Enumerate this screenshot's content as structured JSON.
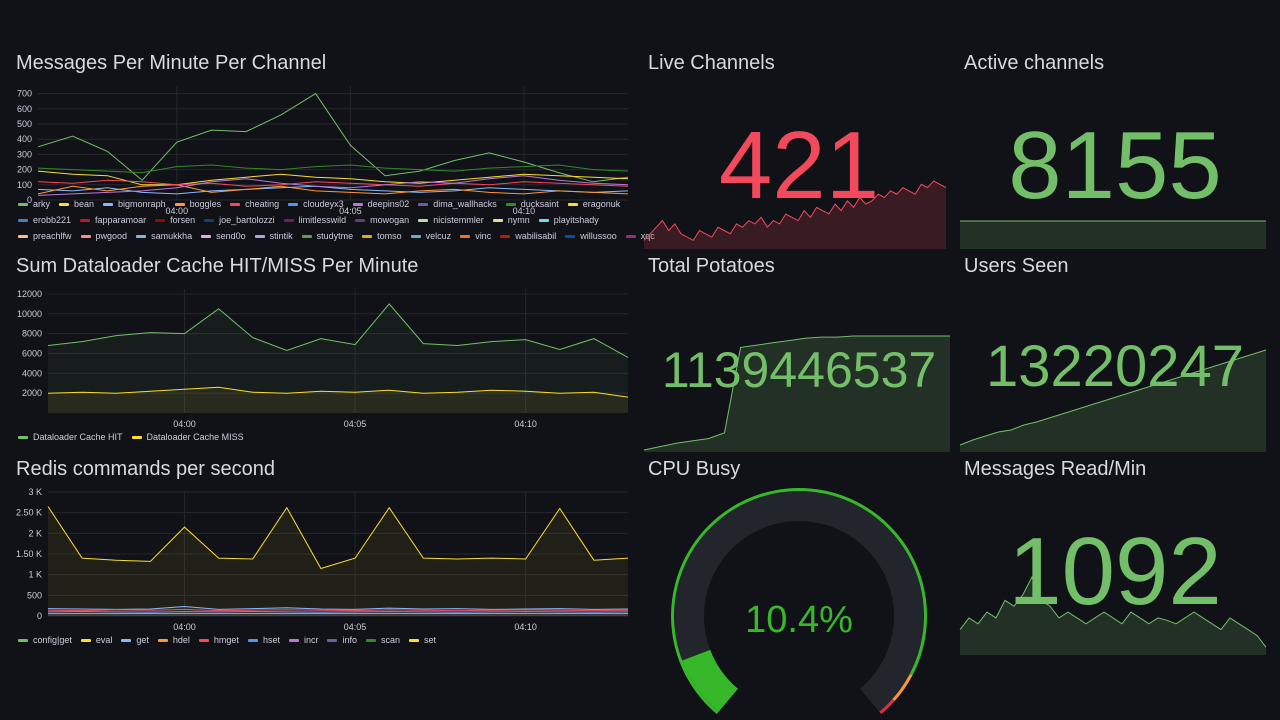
{
  "colors": {
    "green": "#73bf69",
    "yellow": "#fade2a",
    "red": "#f2495c",
    "grid": "#25272d",
    "axis_text": "#ccccdc"
  },
  "panels": {
    "messages_per_minute": {
      "title": "Messages Per Minute Per Channel",
      "y_ticks": [
        "700",
        "600",
        "500",
        "400",
        "300",
        "200",
        "100",
        "0"
      ],
      "x_ticks": [
        "04:00",
        "04:05",
        "04:10"
      ],
      "legend_rows": [
        [
          {
            "label": "arky",
            "color": "#73bf69"
          },
          {
            "label": "bean",
            "color": "#fade2a"
          },
          {
            "label": "bigmonraph",
            "color": "#8ab8ff"
          },
          {
            "label": "boggles",
            "color": "#ff9830"
          },
          {
            "label": "cheating",
            "color": "#f2495c"
          },
          {
            "label": "cloudeyx3",
            "color": "#5794f2"
          },
          {
            "label": "deepins02",
            "color": "#b877d9"
          },
          {
            "label": "dima_wallhacks",
            "color": "#705da0"
          },
          {
            "label": "ducksaint",
            "color": "#37872d"
          },
          {
            "label": "eragonuk",
            "color": "#fade2a"
          }
        ],
        [
          {
            "label": "erobb221",
            "color": "#447ebc"
          },
          {
            "label": "fapparamoar",
            "color": "#c4162a"
          },
          {
            "label": "forsen",
            "color": "#890f02"
          },
          {
            "label": "joe_bartolozzi",
            "color": "#0a437c"
          },
          {
            "label": "limitlesswild",
            "color": "#6d1f62"
          },
          {
            "label": "mowogan",
            "color": "#584477"
          },
          {
            "label": "nicistemmler",
            "color": "#b7dbab"
          },
          {
            "label": "nymn",
            "color": "#f4d598"
          },
          {
            "label": "playitshady",
            "color": "#70dbed"
          }
        ],
        [
          {
            "label": "preachlfw",
            "color": "#f9ba8f"
          },
          {
            "label": "pwgood",
            "color": "#f29191"
          },
          {
            "label": "samukkha",
            "color": "#82b5d8"
          },
          {
            "label": "send0o",
            "color": "#e5a8e2"
          },
          {
            "label": "stintik",
            "color": "#aea2e0"
          },
          {
            "label": "studytme",
            "color": "#629e51"
          },
          {
            "label": "tomso",
            "color": "#e5ac0e"
          },
          {
            "label": "velcuz",
            "color": "#64b0c8"
          },
          {
            "label": "vinc",
            "color": "#e0752d"
          },
          {
            "label": "wabilisabil",
            "color": "#bf1b00"
          },
          {
            "label": "willussoo",
            "color": "#0a50a1"
          },
          {
            "label": "xqc",
            "color": "#962d82"
          }
        ]
      ],
      "chart_data": {
        "type": "line",
        "x": [
          "03:56",
          "03:57",
          "03:58",
          "03:59",
          "04:00",
          "04:01",
          "04:02",
          "04:03",
          "04:04",
          "04:05",
          "04:06",
          "04:07",
          "04:08",
          "04:09",
          "04:10",
          "04:11",
          "04:12",
          "04:13"
        ],
        "ylim": [
          0,
          750
        ],
        "series": [
          {
            "name": "arky",
            "color": "#73bf69",
            "values": [
              350,
              420,
              320,
              130,
              380,
              460,
              450,
              560,
              700,
              360,
              160,
              190,
              260,
              310,
              250,
              180,
              120,
              150
            ]
          },
          {
            "name": "bean",
            "color": "#fade2a",
            "values": [
              190,
              170,
              160,
              100,
              100,
              130,
              150,
              170,
              150,
              140,
              120,
              110,
              130,
              150,
              170,
              160,
              150,
              140
            ]
          },
          {
            "name": "bigmonraph",
            "color": "#8ab8ff",
            "values": [
              70,
              60,
              80,
              50,
              40,
              60,
              70,
              80,
              90,
              70,
              60,
              50,
              60,
              80,
              70,
              60,
              50,
              60
            ]
          },
          {
            "name": "boggles",
            "color": "#ff9830",
            "values": [
              40,
              90,
              60,
              90,
              100,
              50,
              70,
              90,
              60,
              50,
              40,
              60,
              70,
              50,
              40,
              60,
              50,
              40
            ]
          },
          {
            "name": "cheating",
            "color": "#f2495c",
            "values": [
              120,
              110,
              130,
              120,
              100,
              110,
              90,
              100,
              120,
              110,
              100,
              90,
              110,
              100,
              120,
              110,
              100,
              90
            ]
          },
          {
            "name": "deepins02",
            "color": "#b877d9",
            "values": [
              30,
              40,
              50,
              60,
              80,
              120,
              140,
              110,
              90,
              80,
              100,
              120,
              110,
              140,
              160,
              130,
              110,
              100
            ]
          },
          {
            "name": "ducksaint",
            "color": "#37872d",
            "values": [
              210,
              200,
              190,
              180,
              220,
              230,
              210,
              200,
              220,
              230,
              210,
              200,
              190,
              210,
              220,
              230,
              200,
              190
            ]
          }
        ]
      }
    },
    "cache_hit_miss": {
      "title": "Sum Dataloader Cache HIT/MISS Per Minute",
      "y_ticks": [
        "12000",
        "10000",
        "8000",
        "6000",
        "4000",
        "2000"
      ],
      "x_ticks": [
        "04:00",
        "04:05",
        "04:10"
      ],
      "legend": [
        {
          "label": "Dataloader Cache HIT",
          "color": "#73bf69"
        },
        {
          "label": "Dataloader Cache MISS",
          "color": "#fade2a"
        }
      ],
      "chart_data": {
        "type": "area",
        "x": [
          "03:56",
          "03:57",
          "03:58",
          "03:59",
          "04:00",
          "04:01",
          "04:02",
          "04:03",
          "04:04",
          "04:05",
          "04:06",
          "04:07",
          "04:08",
          "04:09",
          "04:10",
          "04:11",
          "04:12",
          "04:13"
        ],
        "ylim": [
          0,
          12500
        ],
        "series": [
          {
            "name": "Dataloader Cache HIT",
            "color": "#73bf69",
            "values": [
              6800,
              7200,
              7800,
              8100,
              8000,
              10500,
              7600,
              6300,
              7500,
              6900,
              11000,
              7000,
              6800,
              7200,
              7400,
              6400,
              7500,
              5600
            ]
          },
          {
            "name": "Dataloader Cache MISS",
            "color": "#fade2a",
            "values": [
              2000,
              2100,
              2000,
              2200,
              2400,
              2600,
              2100,
              2000,
              2200,
              2100,
              2300,
              2000,
              2100,
              2300,
              2200,
              2000,
              2100,
              1600
            ]
          }
        ]
      }
    },
    "redis_commands": {
      "title": "Redis commands per second",
      "y_ticks": [
        "3 K",
        "2.50 K",
        "2 K",
        "1.50 K",
        "1 K",
        "500",
        "0"
      ],
      "x_ticks": [
        "04:00",
        "04:05",
        "04:10"
      ],
      "legend": [
        {
          "label": "config|get",
          "color": "#73bf69"
        },
        {
          "label": "eval",
          "color": "#fade2a"
        },
        {
          "label": "get",
          "color": "#8ab8ff"
        },
        {
          "label": "hdel",
          "color": "#ff9830"
        },
        {
          "label": "hmget",
          "color": "#f2495c"
        },
        {
          "label": "hset",
          "color": "#5794f2"
        },
        {
          "label": "incr",
          "color": "#b877d9"
        },
        {
          "label": "info",
          "color": "#705da0"
        },
        {
          "label": "scan",
          "color": "#37872d"
        },
        {
          "label": "set",
          "color": "#fade2a"
        }
      ],
      "chart_data": {
        "type": "area",
        "x": [
          "03:56",
          "03:57",
          "03:58",
          "03:59",
          "04:00",
          "04:01",
          "04:02",
          "04:03",
          "04:04",
          "04:05",
          "04:06",
          "04:07",
          "04:08",
          "04:09",
          "04:10",
          "04:11",
          "04:12",
          "04:13"
        ],
        "ylim": [
          0,
          3000
        ],
        "series": [
          {
            "name": "eval",
            "color": "#fade2a",
            "values": [
              2650,
              1400,
              1350,
              1320,
              2150,
              1400,
              1380,
              2620,
              1150,
              1400,
              2620,
              1400,
              1380,
              1400,
              1380,
              2600,
              1350,
              1400
            ]
          },
          {
            "name": "get",
            "color": "#8ab8ff",
            "values": [
              180,
              170,
              160,
              170,
              230,
              160,
              180,
              200,
              170,
              160,
              190,
              170,
              180,
              160,
              170,
              180,
              160,
              170
            ]
          },
          {
            "name": "hmget",
            "color": "#f2495c",
            "values": [
              140,
              130,
              150,
              140,
              160,
              130,
              140,
              150,
              140,
              130,
              150,
              140,
              130,
              140,
              150,
              140,
              130,
              140
            ]
          },
          {
            "name": "hset",
            "color": "#5794f2",
            "values": [
              100,
              110,
              100,
              90,
              110,
              100,
              110,
              100,
              90,
              100,
              110,
              100,
              90,
              100,
              110,
              100,
              90,
              100
            ]
          },
          {
            "name": "config|get",
            "color": "#73bf69",
            "values": [
              60,
              60,
              60,
              60,
              60,
              60,
              60,
              60,
              60,
              60,
              60,
              60,
              60,
              60,
              60,
              60,
              60,
              60
            ]
          }
        ]
      }
    },
    "live_channels": {
      "title": "Live Channels",
      "value": "421",
      "color": "#f2495c",
      "sparkline": [
        10,
        20,
        30,
        40,
        25,
        35,
        20,
        15,
        10,
        25,
        20,
        15,
        30,
        25,
        20,
        35,
        30,
        40,
        35,
        45,
        30,
        40,
        35,
        50,
        45,
        40,
        55,
        45,
        60,
        55,
        50,
        65,
        55,
        70,
        60,
        75,
        65,
        70,
        80,
        75,
        85,
        80,
        90,
        85,
        80,
        95,
        90,
        100,
        95,
        90
      ]
    },
    "active_channels": {
      "title": "Active channels",
      "value": "8155",
      "color": "#73bf69",
      "sparkline": [
        100,
        100,
        100,
        100,
        100,
        100,
        100,
        100,
        100,
        100
      ]
    },
    "total_potatoes": {
      "title": "Total Potatoes",
      "value": "1139446537",
      "color": "#73bf69",
      "sparkline": [
        0,
        3,
        6,
        8,
        10,
        15,
        90,
        92,
        94,
        96,
        98,
        99,
        99,
        100,
        100,
        100,
        100,
        100,
        100,
        100
      ]
    },
    "users_seen": {
      "title": "Users Seen",
      "value": "13220247",
      "color": "#73bf69",
      "sparkline": [
        5,
        10,
        14,
        18,
        20,
        25,
        28,
        32,
        36,
        40,
        44,
        48,
        52,
        56,
        60,
        64,
        68,
        72,
        76,
        80,
        84,
        88,
        92,
        96,
        100
      ]
    },
    "cpu_busy": {
      "title": "CPU Busy",
      "value": "10.4%",
      "percent": 10.4,
      "color": "#37b82a"
    },
    "messages_read": {
      "title": "Messages Read/Min",
      "value": "1092",
      "color": "#73bf69",
      "sparkline": [
        20,
        30,
        25,
        35,
        30,
        45,
        40,
        50,
        65,
        45,
        40,
        30,
        35,
        30,
        25,
        30,
        35,
        30,
        25,
        35,
        30,
        25,
        30,
        28,
        25,
        30,
        35,
        30,
        25,
        20,
        30,
        25,
        20,
        15,
        5
      ]
    }
  }
}
